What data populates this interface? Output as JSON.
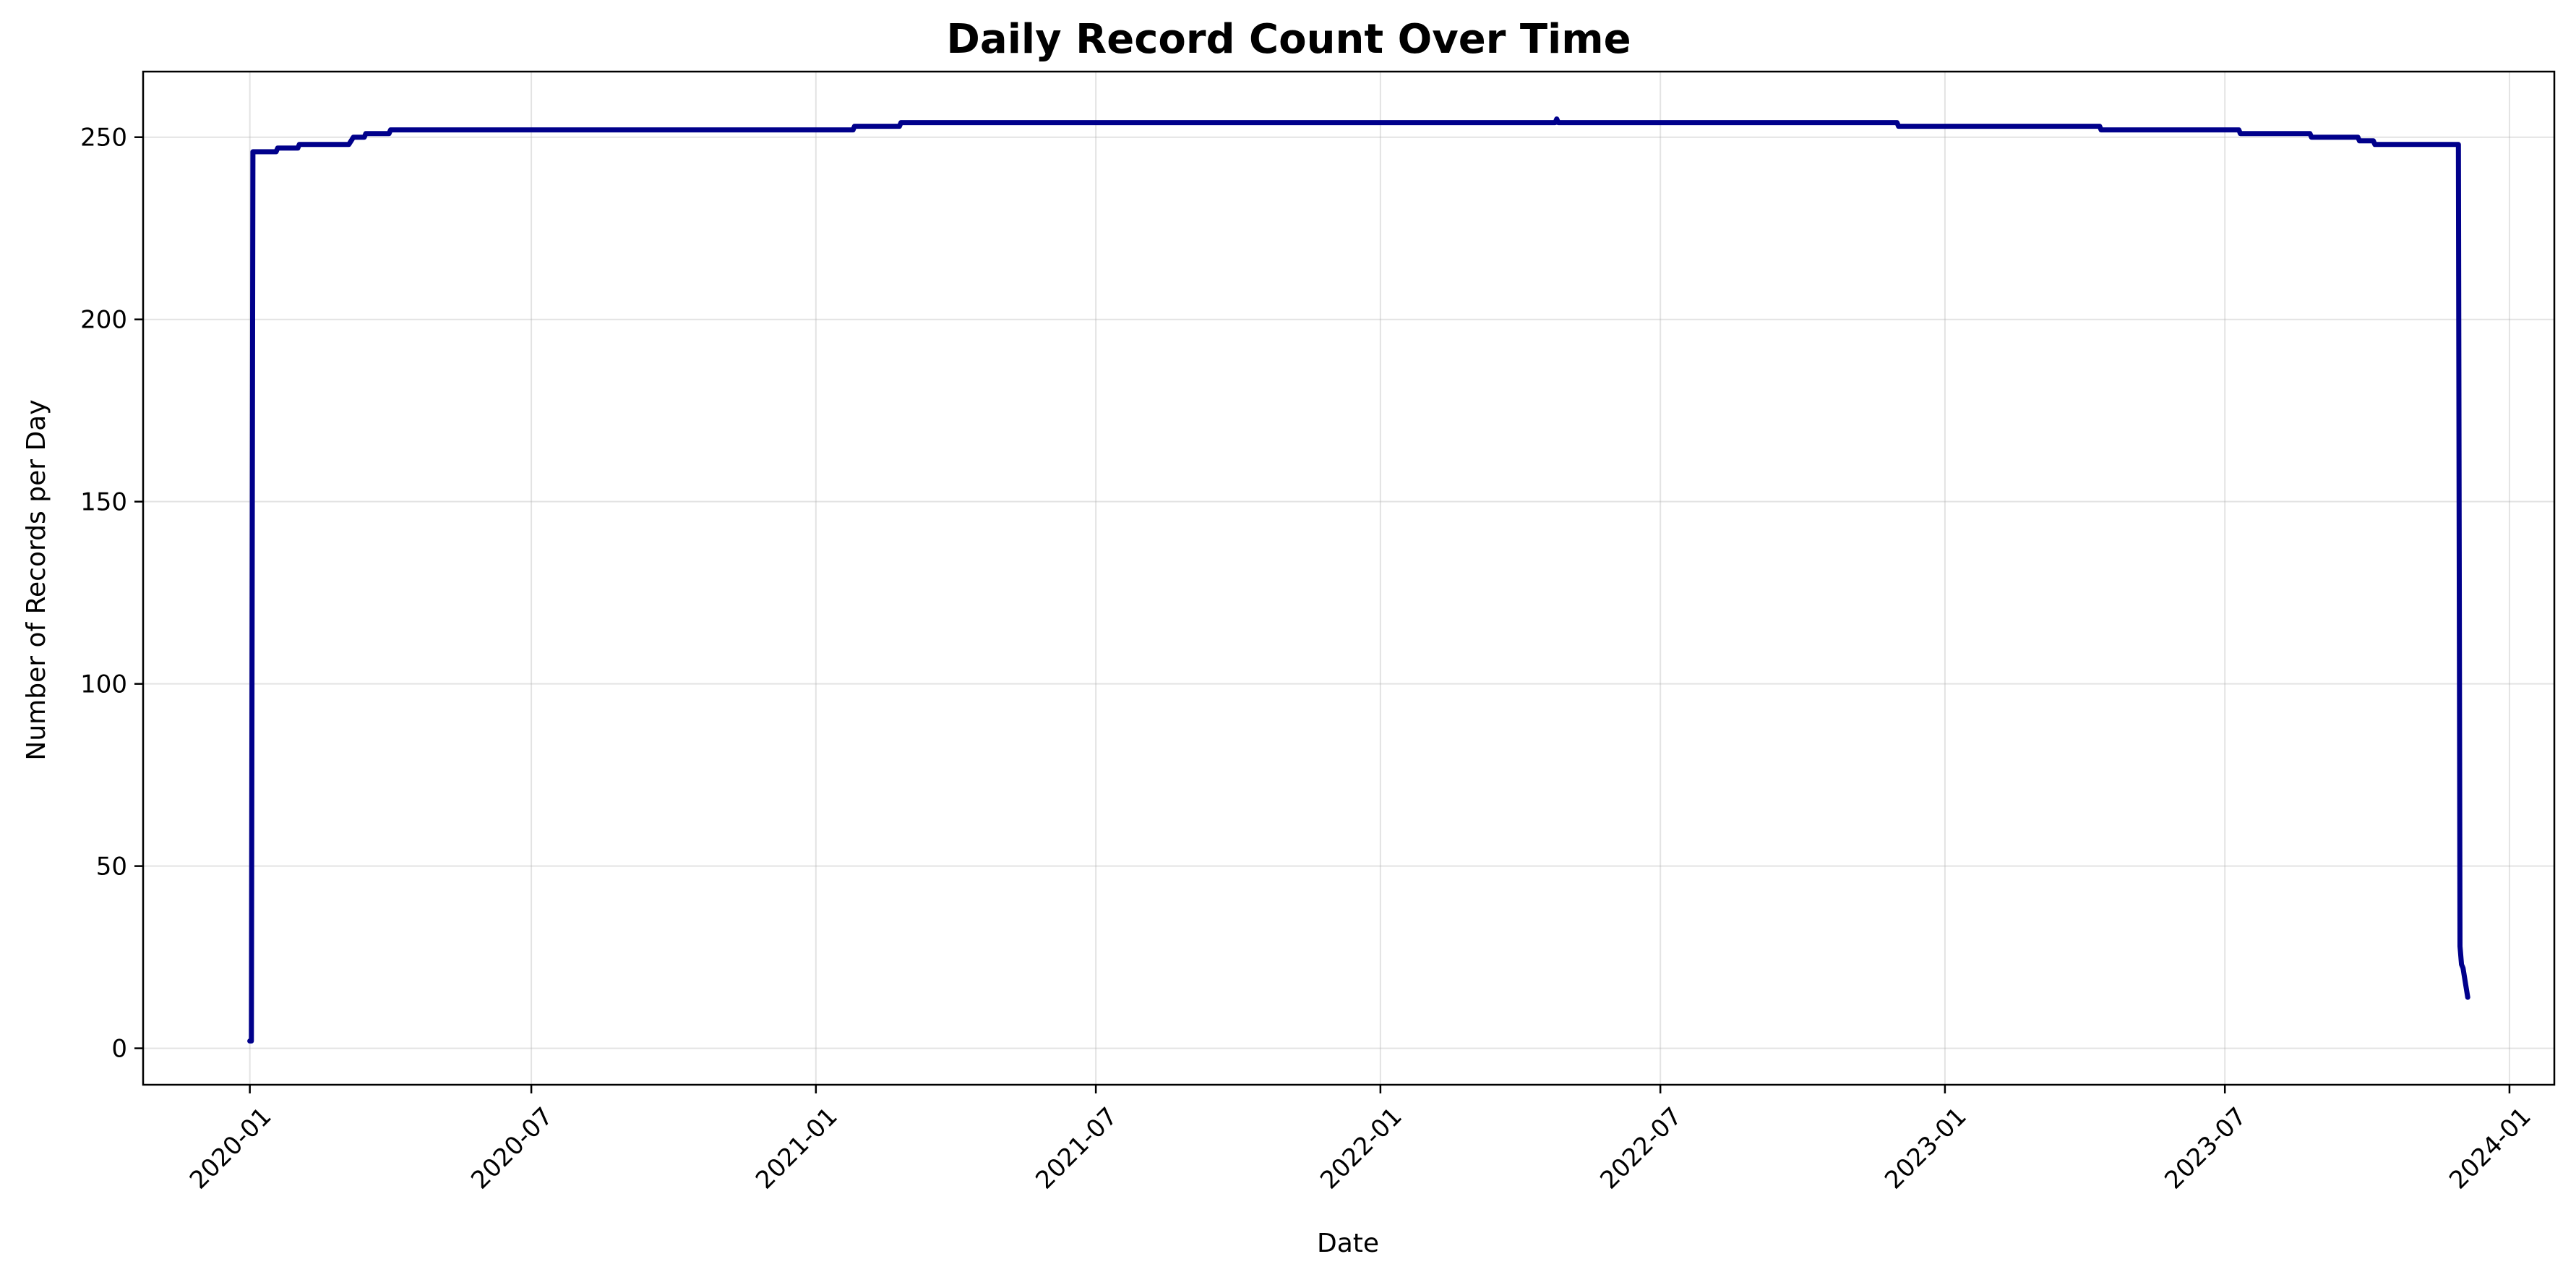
{
  "colors": {
    "series": "#00008b",
    "background": "#ffffff"
  },
  "chart_data": {
    "type": "line",
    "title": "Daily Record Count Over Time",
    "xlabel": "Date",
    "ylabel": "Number of Records per Day",
    "xlim": [
      "2019-10-24",
      "2024-01-30"
    ],
    "ylim": [
      -10,
      268
    ],
    "grid": true,
    "legend": "none",
    "x_ticks": [
      {
        "date": "2020-01-01",
        "label": "2020-01"
      },
      {
        "date": "2020-07-01",
        "label": "2020-07"
      },
      {
        "date": "2021-01-01",
        "label": "2021-01"
      },
      {
        "date": "2021-07-01",
        "label": "2021-07"
      },
      {
        "date": "2022-01-01",
        "label": "2022-01"
      },
      {
        "date": "2022-07-01",
        "label": "2022-07"
      },
      {
        "date": "2023-01-01",
        "label": "2023-01"
      },
      {
        "date": "2023-07-01",
        "label": "2023-07"
      },
      {
        "date": "2024-01-01",
        "label": "2024-01"
      }
    ],
    "y_ticks": [
      {
        "value": 0,
        "label": "0"
      },
      {
        "value": 50,
        "label": "50"
      },
      {
        "value": 100,
        "label": "100"
      },
      {
        "value": 150,
        "label": "150"
      },
      {
        "value": 200,
        "label": "200"
      },
      {
        "value": 250,
        "label": "250"
      }
    ],
    "series": [
      {
        "points": [
          [
            "2020-01-01",
            2
          ],
          [
            "2020-01-02",
            2
          ],
          [
            "2020-01-03",
            246
          ],
          [
            "2020-01-18",
            246
          ],
          [
            "2020-01-19",
            247
          ],
          [
            "2020-02-01",
            247
          ],
          [
            "2020-02-02",
            248
          ],
          [
            "2020-03-05",
            248
          ],
          [
            "2020-03-08",
            250
          ],
          [
            "2020-03-15",
            250
          ],
          [
            "2020-03-16",
            251
          ],
          [
            "2020-03-31",
            251
          ],
          [
            "2020-04-01",
            252
          ],
          [
            "2021-01-25",
            252
          ],
          [
            "2021-01-26",
            253
          ],
          [
            "2021-02-24",
            253
          ],
          [
            "2021-02-25",
            254
          ],
          [
            "2022-04-24",
            254
          ],
          [
            "2022-04-25",
            255
          ],
          [
            "2022-04-26",
            254
          ],
          [
            "2022-12-01",
            254
          ],
          [
            "2022-12-02",
            253
          ],
          [
            "2023-04-11",
            253
          ],
          [
            "2023-04-12",
            252
          ],
          [
            "2023-07-10",
            252
          ],
          [
            "2023-07-11",
            251
          ],
          [
            "2023-08-25",
            251
          ],
          [
            "2023-08-26",
            250
          ],
          [
            "2023-09-25",
            250
          ],
          [
            "2023-09-26",
            249
          ],
          [
            "2023-10-05",
            249
          ],
          [
            "2023-10-06",
            248
          ],
          [
            "2023-11-29",
            248
          ],
          [
            "2023-11-30",
            28
          ],
          [
            "2023-12-01",
            23
          ],
          [
            "2023-12-02",
            22
          ],
          [
            "2023-12-05",
            14
          ]
        ]
      }
    ]
  }
}
